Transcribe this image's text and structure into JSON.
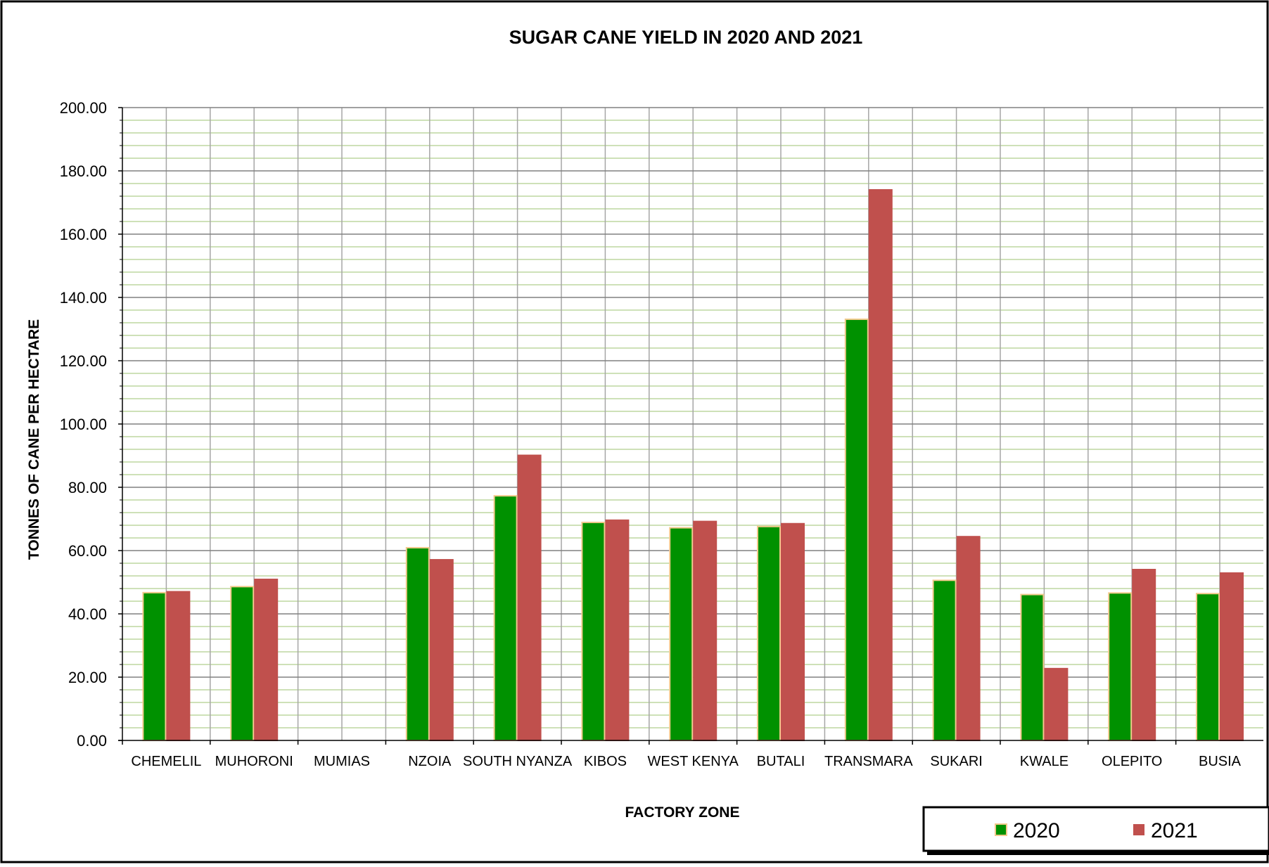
{
  "chart_data": {
    "type": "bar",
    "title": "SUGAR CANE YIELD IN 2020 AND 2021",
    "xlabel": "FACTORY ZONE",
    "ylabel": "TONNES OF CANE PER HECTARE",
    "ylim": [
      0,
      200
    ],
    "yticks": [
      "0.00",
      "20.00",
      "40.00",
      "60.00",
      "80.00",
      "100.00",
      "120.00",
      "140.00",
      "160.00",
      "180.00",
      "200.00"
    ],
    "ytick_values": [
      0,
      20,
      40,
      60,
      80,
      100,
      120,
      140,
      160,
      180,
      200
    ],
    "grid": true,
    "legend_position": "bottom-right",
    "categories": [
      "CHEMELIL",
      "MUHORONI",
      "MUMIAS",
      "NZOIA",
      "SOUTH NYANZA",
      "KIBOS",
      "WEST KENYA",
      "BUTALI",
      "TRANSMARA",
      "SUKARI",
      "KWALE",
      "OLEPITO",
      "BUSIA"
    ],
    "series": [
      {
        "name": "2020",
        "color": "#009100",
        "edge": "#f2c98c",
        "values": [
          46.7,
          48.6,
          null,
          60.9,
          77.3,
          68.9,
          67.2,
          67.6,
          133.1,
          50.6,
          46.1,
          46.6,
          46.4
        ]
      },
      {
        "name": "2021",
        "color": "#c0504d",
        "edge": "#c0504d",
        "values": [
          47.0,
          50.9,
          null,
          57.1,
          90.1,
          69.6,
          69.2,
          68.5,
          174.0,
          64.4,
          22.7,
          54.0,
          52.9
        ]
      }
    ]
  },
  "colors": {
    "major_grid": "#808080",
    "minor_grid": "#bdd7a0",
    "vertical_grid": "#a6a6a6",
    "frame": "#000000"
  }
}
